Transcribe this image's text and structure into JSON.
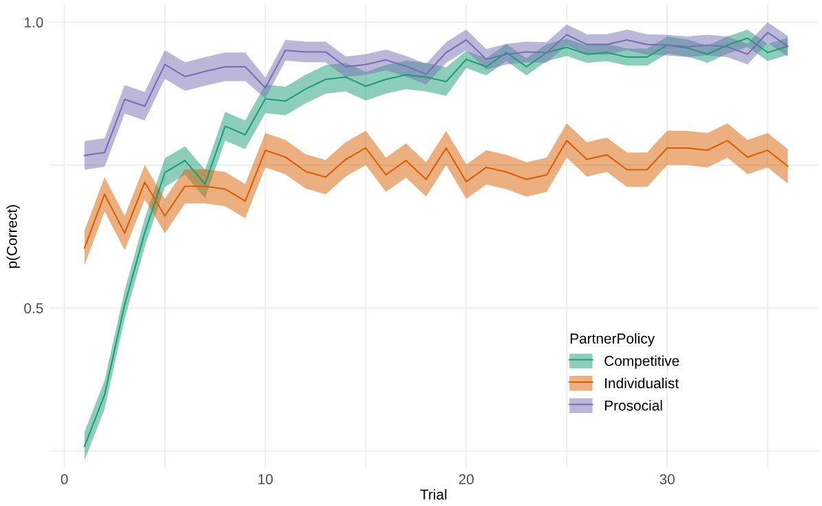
{
  "chart_data": {
    "type": "line",
    "xlabel": "Trial",
    "ylabel": "p(Correct)",
    "legend_title": "PartnerPolicy",
    "legend": "bottom right",
    "grid": true,
    "marker": "none",
    "line_style": "solid",
    "x": [
      1,
      2,
      3,
      4,
      5,
      6,
      7,
      8,
      9,
      10,
      11,
      12,
      13,
      14,
      15,
      16,
      17,
      18,
      19,
      20,
      21,
      22,
      23,
      24,
      25,
      26,
      27,
      28,
      29,
      30,
      31,
      32,
      33,
      34,
      35,
      36
    ],
    "xlim": [
      -0.75,
      37.5
    ],
    "xticks": [
      0,
      {
        "value": 5,
        "label": null
      },
      10,
      {
        "value": 15,
        "label": null
      },
      20,
      {
        "value": 25,
        "label": null
      },
      30,
      {
        "value": 35,
        "label": null
      }
    ],
    "ylim": [
      0.22,
      1.03
    ],
    "yticks": [
      {
        "value": 0.25,
        "label": null
      },
      0.5,
      {
        "value": 0.75,
        "label": null
      },
      {
        "value": 1.0,
        "label": "1.0"
      }
    ],
    "series": [
      {
        "name": "Competitive",
        "color": "#1b9e77",
        "values": [
          0.258,
          0.348,
          0.506,
          0.632,
          0.737,
          0.758,
          0.717,
          0.818,
          0.803,
          0.866,
          0.862,
          0.883,
          0.9,
          0.904,
          0.888,
          0.9,
          0.908,
          0.904,
          0.896,
          0.935,
          0.922,
          0.947,
          0.922,
          0.947,
          0.956,
          0.944,
          0.947,
          0.939,
          0.939,
          0.96,
          0.955,
          0.944,
          0.96,
          0.972,
          0.947,
          0.958
        ],
        "lower": [
          0.233,
          0.323,
          0.481,
          0.607,
          0.712,
          0.733,
          0.692,
          0.793,
          0.778,
          0.841,
          0.837,
          0.858,
          0.875,
          0.879,
          0.863,
          0.875,
          0.883,
          0.879,
          0.871,
          0.92,
          0.907,
          0.932,
          0.907,
          0.932,
          0.941,
          0.929,
          0.932,
          0.924,
          0.924,
          0.945,
          0.94,
          0.929,
          0.945,
          0.957,
          0.932,
          0.943
        ],
        "upper": [
          0.283,
          0.373,
          0.531,
          0.657,
          0.762,
          0.783,
          0.742,
          0.843,
          0.828,
          0.891,
          0.887,
          0.908,
          0.925,
          0.929,
          0.913,
          0.925,
          0.933,
          0.929,
          0.921,
          0.95,
          0.937,
          0.962,
          0.937,
          0.962,
          0.971,
          0.959,
          0.962,
          0.954,
          0.954,
          0.975,
          0.97,
          0.959,
          0.975,
          0.987,
          0.962,
          0.973
        ]
      },
      {
        "name": "Individualist",
        "color": "#d95f02",
        "values": [
          0.605,
          0.699,
          0.631,
          0.72,
          0.661,
          0.713,
          0.713,
          0.708,
          0.687,
          0.776,
          0.764,
          0.739,
          0.729,
          0.76,
          0.78,
          0.733,
          0.758,
          0.725,
          0.78,
          0.721,
          0.746,
          0.738,
          0.725,
          0.733,
          0.793,
          0.76,
          0.768,
          0.742,
          0.742,
          0.78,
          0.78,
          0.776,
          0.793,
          0.764,
          0.776,
          0.748
        ],
        "lower": [
          0.575,
          0.669,
          0.601,
          0.69,
          0.631,
          0.683,
          0.683,
          0.678,
          0.657,
          0.746,
          0.734,
          0.709,
          0.699,
          0.73,
          0.75,
          0.703,
          0.728,
          0.695,
          0.75,
          0.691,
          0.716,
          0.708,
          0.695,
          0.703,
          0.763,
          0.73,
          0.738,
          0.712,
          0.712,
          0.75,
          0.75,
          0.746,
          0.763,
          0.734,
          0.746,
          0.718
        ],
        "upper": [
          0.635,
          0.729,
          0.661,
          0.75,
          0.691,
          0.743,
          0.743,
          0.738,
          0.717,
          0.806,
          0.794,
          0.769,
          0.759,
          0.79,
          0.81,
          0.763,
          0.788,
          0.755,
          0.81,
          0.751,
          0.776,
          0.768,
          0.755,
          0.763,
          0.823,
          0.79,
          0.798,
          0.772,
          0.772,
          0.81,
          0.81,
          0.806,
          0.823,
          0.794,
          0.806,
          0.778
        ]
      },
      {
        "name": "Prosocial",
        "color": "#7570b3",
        "values": [
          0.767,
          0.772,
          0.865,
          0.853,
          0.926,
          0.905,
          0.914,
          0.922,
          0.922,
          0.885,
          0.951,
          0.948,
          0.948,
          0.922,
          0.926,
          0.934,
          0.923,
          0.909,
          0.947,
          0.969,
          0.935,
          0.944,
          0.948,
          0.947,
          0.978,
          0.961,
          0.961,
          0.969,
          0.961,
          0.96,
          0.957,
          0.96,
          0.957,
          0.944,
          0.982,
          0.958
        ],
        "lower": [
          0.742,
          0.747,
          0.84,
          0.828,
          0.901,
          0.88,
          0.889,
          0.897,
          0.897,
          0.867,
          0.933,
          0.93,
          0.93,
          0.904,
          0.908,
          0.916,
          0.905,
          0.891,
          0.929,
          0.951,
          0.917,
          0.926,
          0.93,
          0.929,
          0.96,
          0.943,
          0.943,
          0.951,
          0.943,
          0.942,
          0.939,
          0.942,
          0.939,
          0.926,
          0.964,
          0.94
        ],
        "upper": [
          0.792,
          0.797,
          0.89,
          0.878,
          0.951,
          0.93,
          0.939,
          0.947,
          0.947,
          0.903,
          0.969,
          0.966,
          0.966,
          0.94,
          0.944,
          0.952,
          0.941,
          0.927,
          0.965,
          0.987,
          0.953,
          0.962,
          0.966,
          0.965,
          0.996,
          0.979,
          0.979,
          0.987,
          0.979,
          0.978,
          0.975,
          0.978,
          0.975,
          0.962,
          1.0,
          0.976
        ]
      }
    ]
  }
}
